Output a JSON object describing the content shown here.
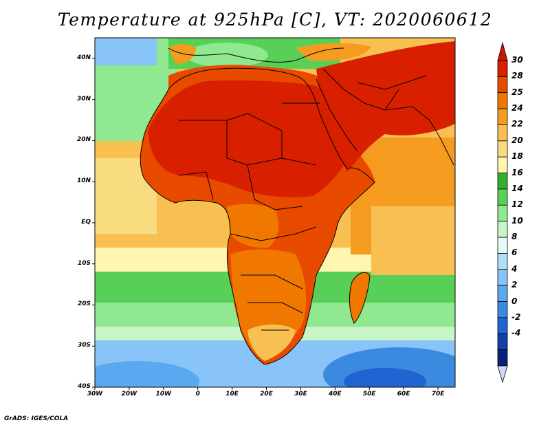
{
  "title": "Temperature at 925hPa [C], VT: 2020060612",
  "credit": "GrADS: IGES/COLA",
  "map": {
    "lat_labels": [
      "40N",
      "30N",
      "20N",
      "10N",
      "EQ",
      "10S",
      "20S",
      "30S",
      "40S"
    ],
    "lon_labels": [
      "30W",
      "20W",
      "10W",
      "0",
      "10E",
      "20E",
      "30E",
      "40E",
      "50E",
      "60E",
      "70E"
    ],
    "lat_range": [
      -40,
      45
    ],
    "lon_range": [
      -30,
      75
    ]
  },
  "colorbar": {
    "labels": [
      "30",
      "28",
      "25",
      "24",
      "22",
      "20",
      "18",
      "16",
      "14",
      "12",
      "10",
      "8",
      "6",
      "4",
      "2",
      "0",
      "-2",
      "-4"
    ],
    "colors": [
      "#d82000",
      "#e84a00",
      "#f07800",
      "#f59c20",
      "#f8c050",
      "#fadc80",
      "#fdf5b0",
      "#30b030",
      "#58d058",
      "#90e890",
      "#c8f5c8",
      "#e8faf8",
      "#b0dcf8",
      "#88c4f8",
      "#5aa8f0",
      "#3a8ae0",
      "#1f64d0",
      "#1040a8",
      "#08207a"
    ],
    "top_arrow_color": "#c81800",
    "bottom_arrow_color": "#d0d8f8"
  },
  "colors": {
    "ocean_far": "#6ab4f0",
    "ocean_cold": "#3a8ae0",
    "land_hot": "#d82000",
    "border": "#000000"
  }
}
